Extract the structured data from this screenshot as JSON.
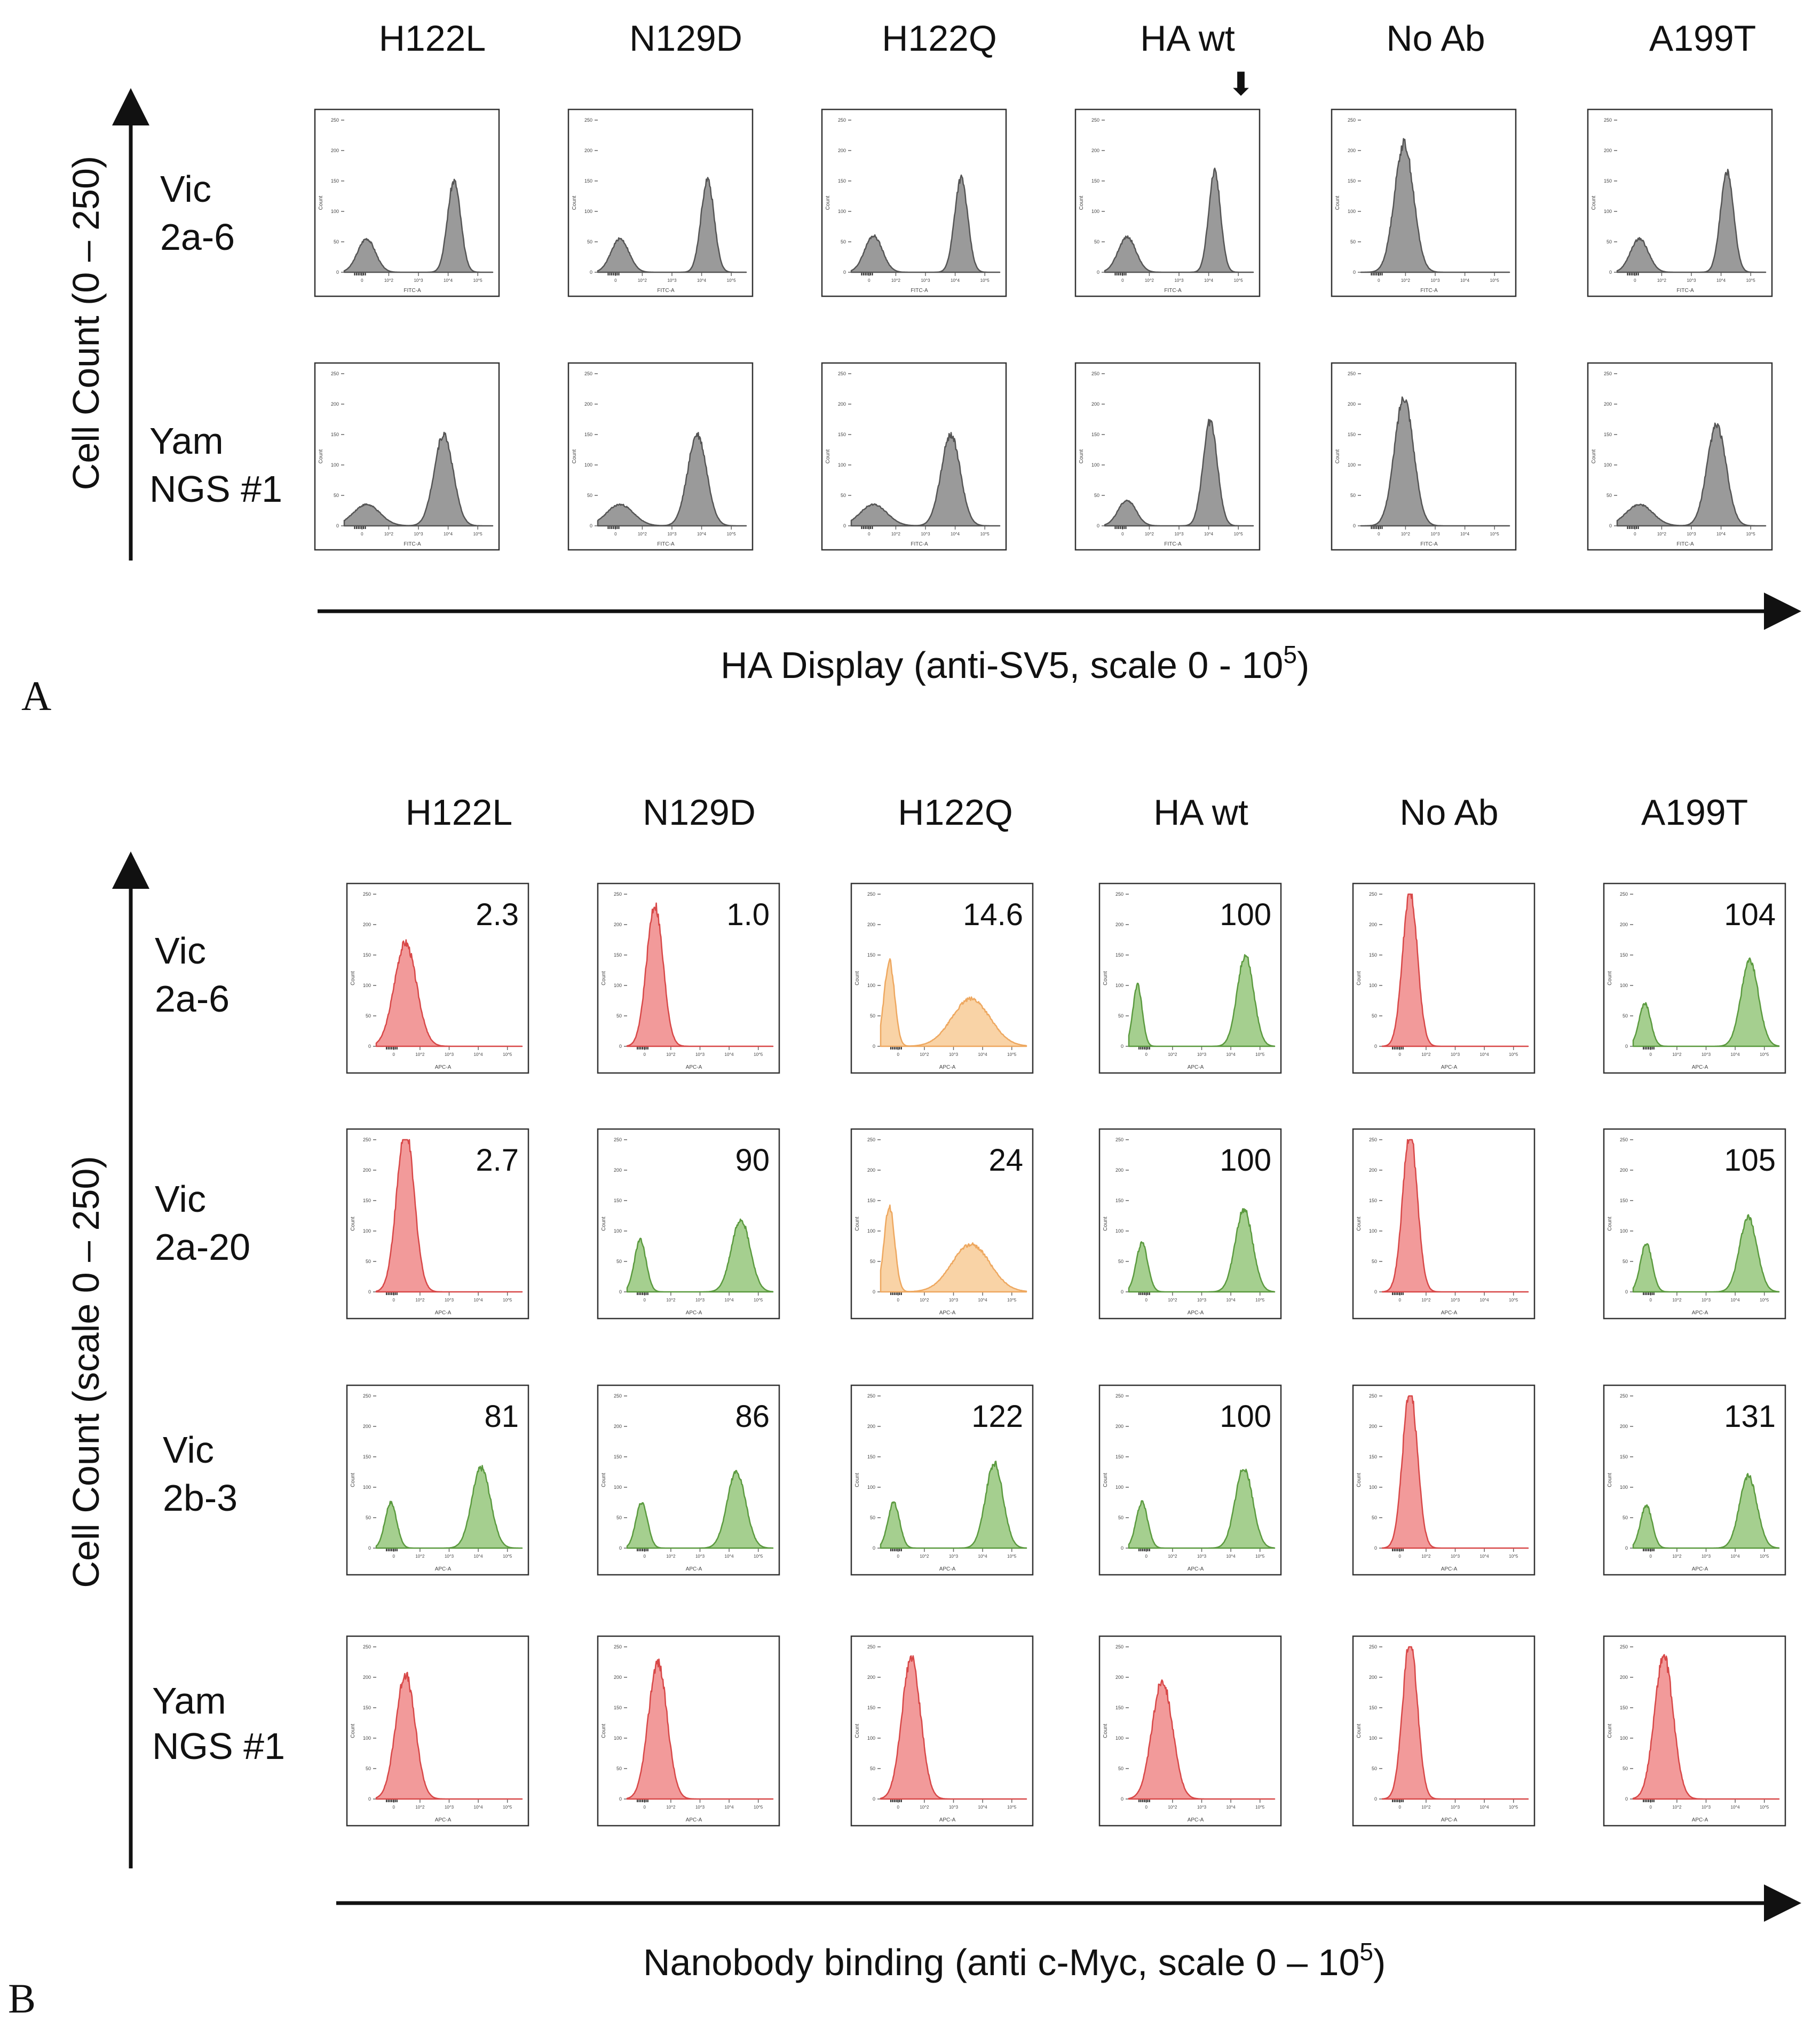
{
  "panels": {
    "A": {
      "letter": "A",
      "columns": [
        "H122L",
        "N129D",
        "H122Q",
        "HA wt",
        "No Ab",
        "A199T"
      ],
      "rows": [
        {
          "line1": "Vic",
          "line2": "2a-6"
        },
        {
          "line1": "Yam",
          "line2": "NGS #1"
        }
      ],
      "y_axis_label": "Cell Count (0 – 250)",
      "x_axis_label_main": "HA Display (anti-SV5, scale 0 - 10",
      "x_axis_label_sup": "5",
      "x_axis_label_end": ")",
      "arrow_marker": "⬇",
      "plot_x_label": "FITC-A",
      "plot_y_label": "Count"
    },
    "B": {
      "letter": "B",
      "columns": [
        "H122L",
        "N129D",
        "H122Q",
        "HA wt",
        "No Ab",
        "A199T"
      ],
      "rows": [
        {
          "line1": "Vic",
          "line2": "2a-6"
        },
        {
          "line1": "Vic",
          "line2": "2a-20"
        },
        {
          "line1": "Vic",
          "line2": "2b-3"
        },
        {
          "line1": "Yam",
          "line2": "NGS #1"
        }
      ],
      "y_axis_label": "Cell Count (scale 0 – 250)",
      "x_axis_label_main": "Nanobody binding (anti c-Myc, scale 0 – 10",
      "x_axis_label_sup": "5",
      "x_axis_label_end": ")",
      "plot_x_label": "APC-A",
      "plot_y_label": "Count"
    }
  },
  "colors": {
    "gray_fill": "#9a9a9a",
    "gray_line": "#555555",
    "red_fill": "#f29a9a",
    "red_line": "#d84848",
    "orange_fill": "#f9d3a6",
    "orange_line": "#eea860",
    "green_fill": "#a5cf8f",
    "green_line": "#5b9a3f"
  },
  "chart_data": [
    {
      "type": "area",
      "panel": "A",
      "title": "HA Display",
      "xlabel": "HA Display (anti-SV5, scale 0 - 10^5)",
      "ylabel": "Cell Count (0 – 250)",
      "xlim": [
        0,
        5
      ],
      "ylim": [
        0,
        250
      ],
      "y_ticks": [
        0,
        50,
        100,
        150,
        200,
        250
      ],
      "x_ticks": [
        "0",
        "10^2",
        "10^3",
        "10^4",
        "10^5"
      ],
      "histograms": [
        [
          {
            "col": "H122L",
            "color": "gray",
            "peaks": [
              [
                0.75,
                0.3,
                55
              ],
              [
                3.7,
                0.22,
                150
              ]
            ]
          },
          {
            "col": "N129D",
            "color": "gray",
            "peaks": [
              [
                0.75,
                0.3,
                55
              ],
              [
                3.7,
                0.22,
                152
              ]
            ]
          },
          {
            "col": "H122Q",
            "color": "gray",
            "peaks": [
              [
                0.75,
                0.3,
                60
              ],
              [
                3.7,
                0.22,
                155
              ]
            ]
          },
          {
            "col": "HA wt",
            "color": "gray",
            "peaks": [
              [
                0.75,
                0.3,
                58
              ],
              [
                3.7,
                0.2,
                165
              ]
            ]
          },
          {
            "col": "No Ab",
            "color": "gray",
            "peaks": [
              [
                1.45,
                0.32,
                212
              ]
            ]
          },
          {
            "col": "A199T",
            "color": "gray",
            "peaks": [
              [
                0.75,
                0.3,
                55
              ],
              [
                3.7,
                0.22,
                165
              ]
            ]
          }
        ],
        [
          {
            "col": "H122L",
            "color": "gray",
            "peaks": [
              [
                0.75,
                0.45,
                35
              ],
              [
                3.35,
                0.32,
                150
              ]
            ]
          },
          {
            "col": "N129D",
            "color": "gray",
            "peaks": [
              [
                0.75,
                0.45,
                35
              ],
              [
                3.35,
                0.32,
                150
              ]
            ]
          },
          {
            "col": "H122Q",
            "color": "gray",
            "peaks": [
              [
                0.75,
                0.45,
                35
              ],
              [
                3.35,
                0.32,
                150
              ]
            ]
          },
          {
            "col": "HA wt",
            "color": "gray",
            "peaks": [
              [
                0.75,
                0.3,
                42
              ],
              [
                3.55,
                0.24,
                172
              ]
            ]
          },
          {
            "col": "No Ab",
            "color": "gray",
            "peaks": [
              [
                1.45,
                0.32,
                212
              ]
            ]
          },
          {
            "col": "A199T",
            "color": "gray",
            "peaks": [
              [
                0.75,
                0.45,
                35
              ],
              [
                3.35,
                0.32,
                165
              ]
            ]
          }
        ]
      ]
    },
    {
      "type": "area",
      "panel": "B",
      "title": "Nanobody binding",
      "xlabel": "Nanobody binding (anti c-Myc, scale 0 – 10^5)",
      "ylabel": "Cell Count (scale 0 – 250)",
      "xlim": [
        0,
        5
      ],
      "ylim": [
        0,
        250
      ],
      "y_ticks": [
        0,
        50,
        100,
        150,
        200,
        250
      ],
      "x_ticks": [
        "0",
        "10^2",
        "10^3",
        "10^4",
        "10^5"
      ],
      "histograms": [
        [
          {
            "col": "H122L",
            "label": "2.3",
            "color": "red",
            "peaks": [
              [
                1.0,
                0.38,
                170
              ]
            ]
          },
          {
            "col": "N129D",
            "label": "1.0",
            "color": "red",
            "peaks": [
              [
                0.95,
                0.28,
                232
              ]
            ]
          },
          {
            "col": "H122Q",
            "label": "14.6",
            "color": "orange",
            "peaks": [
              [
                0.3,
                0.18,
                140
              ],
              [
                3.1,
                0.65,
                78
              ]
            ]
          },
          {
            "col": "HA wt",
            "label": "100",
            "color": "green",
            "peaks": [
              [
                0.3,
                0.16,
                100
              ],
              [
                4.0,
                0.28,
                150
              ]
            ]
          },
          {
            "col": "No Ab",
            "label": "",
            "color": "red",
            "peaks": [
              [
                0.95,
                0.25,
                258
              ]
            ]
          },
          {
            "col": "A199T",
            "label": "104",
            "color": "green",
            "peaks": [
              [
                0.4,
                0.2,
                70
              ],
              [
                4.0,
                0.3,
                140
              ]
            ]
          }
        ],
        [
          {
            "col": "H122L",
            "label": "2.7",
            "color": "red",
            "peaks": [
              [
                1.0,
                0.3,
                268
              ]
            ]
          },
          {
            "col": "N129D",
            "label": "90",
            "color": "green",
            "peaks": [
              [
                0.45,
                0.2,
                85
              ],
              [
                3.9,
                0.32,
                120
              ]
            ]
          },
          {
            "col": "H122Q",
            "label": "24",
            "color": "orange",
            "peaks": [
              [
                0.3,
                0.18,
                140
              ],
              [
                3.1,
                0.65,
                78
              ]
            ]
          },
          {
            "col": "HA wt",
            "label": "100",
            "color": "green",
            "peaks": [
              [
                0.45,
                0.2,
                80
              ],
              [
                3.95,
                0.3,
                135
              ]
            ]
          },
          {
            "col": "No Ab",
            "label": "",
            "color": "red",
            "peaks": [
              [
                0.95,
                0.25,
                262
              ]
            ]
          },
          {
            "col": "A199T",
            "label": "105",
            "color": "green",
            "peaks": [
              [
                0.45,
                0.2,
                80
              ],
              [
                3.95,
                0.3,
                122
              ]
            ]
          }
        ],
        [
          {
            "col": "H122L",
            "label": "81",
            "color": "green",
            "peaks": [
              [
                0.5,
                0.2,
                75
              ],
              [
                3.6,
                0.32,
                132
              ]
            ]
          },
          {
            "col": "N129D",
            "label": "86",
            "color": "green",
            "peaks": [
              [
                0.5,
                0.2,
                75
              ],
              [
                3.75,
                0.32,
                125
              ]
            ]
          },
          {
            "col": "H122Q",
            "label": "122",
            "color": "green",
            "peaks": [
              [
                0.45,
                0.2,
                75
              ],
              [
                3.9,
                0.3,
                140
              ]
            ]
          },
          {
            "col": "HA wt",
            "label": "100",
            "color": "green",
            "peaks": [
              [
                0.45,
                0.2,
                75
              ],
              [
                3.95,
                0.3,
                132
              ]
            ]
          },
          {
            "col": "No Ab",
            "label": "",
            "color": "red",
            "peaks": [
              [
                0.95,
                0.25,
                265
              ]
            ]
          },
          {
            "col": "A199T",
            "label": "131",
            "color": "green",
            "peaks": [
              [
                0.45,
                0.2,
                70
              ],
              [
                3.95,
                0.3,
                118
              ]
            ]
          }
        ],
        [
          {
            "col": "H122L",
            "label": "",
            "color": "red",
            "peaks": [
              [
                1.0,
                0.33,
                205
              ]
            ]
          },
          {
            "col": "N129D",
            "label": "",
            "color": "red",
            "peaks": [
              [
                1.05,
                0.32,
                225
              ]
            ]
          },
          {
            "col": "H122Q",
            "label": "",
            "color": "red",
            "peaks": [
              [
                1.05,
                0.32,
                232
              ]
            ]
          },
          {
            "col": "HA wt",
            "label": "",
            "color": "red",
            "peaks": [
              [
                1.15,
                0.35,
                195
              ]
            ]
          },
          {
            "col": "No Ab",
            "label": "",
            "color": "red",
            "peaks": [
              [
                0.95,
                0.25,
                262
              ]
            ]
          },
          {
            "col": "A199T",
            "label": "",
            "color": "red",
            "peaks": [
              [
                1.05,
                0.32,
                235
              ]
            ]
          }
        ]
      ]
    }
  ]
}
